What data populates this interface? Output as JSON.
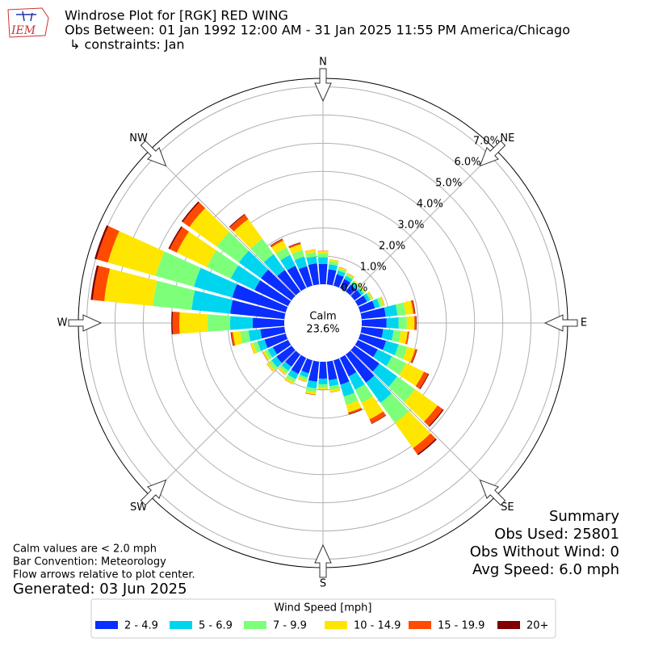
{
  "header": {
    "title": "Windrose Plot for [RGK] RED WING",
    "subtitle": "Obs Between: 01 Jan 1992 12:00 AM - 31 Jan 2025 11:55 PM America/Chicago",
    "constraints": "↳ constraints: Jan",
    "logo_text": "IEM"
  },
  "chart_data": {
    "type": "windrose",
    "x": [
      0,
      10,
      20,
      30,
      40,
      50,
      60,
      70,
      80,
      90,
      100,
      110,
      120,
      130,
      140,
      150,
      160,
      170,
      180,
      190,
      200,
      210,
      220,
      230,
      240,
      250,
      260,
      270,
      280,
      290,
      300,
      310,
      320,
      330,
      340,
      350
    ],
    "xticks": [
      {
        "value": 0,
        "label": "N"
      },
      {
        "value": 45,
        "label": "NE"
      },
      {
        "value": 90,
        "label": "E"
      },
      {
        "value": 135,
        "label": "SE"
      },
      {
        "value": 180,
        "label": "S"
      },
      {
        "value": 225,
        "label": "SW"
      },
      {
        "value": 270,
        "label": "W"
      },
      {
        "value": 315,
        "label": "NW"
      }
    ],
    "ylim": [
      0,
      7.3
    ],
    "yticks": [
      {
        "value": 0,
        "label": "0.0%"
      },
      {
        "value": 1,
        "label": "1.0%"
      },
      {
        "value": 2,
        "label": "2.0%"
      },
      {
        "value": 3,
        "label": "3.0%"
      },
      {
        "value": 4,
        "label": "4.0%"
      },
      {
        "value": 5,
        "label": "5.0%"
      },
      {
        "value": 6,
        "label": "6.0%"
      },
      {
        "value": 7,
        "label": "7.0%"
      }
    ],
    "grid": true,
    "calm_label": "Calm",
    "calm_text": "23.6%",
    "legend_title": "Wind Speed [mph]",
    "series": [
      {
        "name": "2 - 4.9",
        "color": "#0a2eff",
        "values": [
          0.72,
          0.54,
          0.42,
          0.36,
          0.3,
          0.3,
          0.36,
          0.54,
          0.86,
          0.88,
          0.77,
          0.95,
          0.78,
          1.09,
          1.23,
          0.73,
          0.9,
          0.66,
          0.6,
          0.72,
          0.48,
          0.63,
          0.54,
          0.66,
          0.6,
          0.78,
          0.86,
          1.12,
          1.93,
          1.97,
          1.32,
          1.34,
          0.95,
          0.88,
          0.72,
          0.75
        ]
      },
      {
        "name": "5 - 6.9",
        "color": "#00d5f0",
        "values": [
          0.24,
          0.18,
          0.14,
          0.12,
          0.1,
          0.1,
          0.12,
          0.18,
          0.42,
          0.43,
          0.37,
          0.46,
          0.56,
          0.78,
          0.88,
          0.52,
          0.44,
          0.22,
          0.2,
          0.24,
          0.16,
          0.21,
          0.18,
          0.22,
          0.2,
          0.26,
          0.42,
          0.8,
          1.38,
          1.41,
          0.94,
          0.96,
          0.68,
          0.43,
          0.35,
          0.25
        ]
      },
      {
        "name": "7 - 9.9",
        "color": "#7dff7a",
        "values": [
          0.14,
          0.11,
          0.08,
          0.07,
          0.06,
          0.06,
          0.07,
          0.11,
          0.29,
          0.29,
          0.26,
          0.32,
          0.56,
          0.78,
          0.88,
          0.52,
          0.3,
          0.13,
          0.12,
          0.14,
          0.1,
          0.13,
          0.11,
          0.13,
          0.12,
          0.16,
          0.29,
          0.8,
          1.38,
          1.41,
          0.94,
          0.96,
          0.68,
          0.29,
          0.24,
          0.15
        ]
      },
      {
        "name": "10 - 14.9",
        "color": "#ffe600",
        "values": [
          0.08,
          0.06,
          0.05,
          0.04,
          0.04,
          0.04,
          0.04,
          0.06,
          0.27,
          0.27,
          0.24,
          0.29,
          0.7,
          0.98,
          1.1,
          0.65,
          0.28,
          0.08,
          0.07,
          0.08,
          0.05,
          0.07,
          0.06,
          0.08,
          0.07,
          0.09,
          0.27,
          1.0,
          1.73,
          1.76,
          1.18,
          1.2,
          0.85,
          0.27,
          0.22,
          0.09
        ]
      },
      {
        "name": "15 - 19.9",
        "color": "#ff4a00",
        "values": [
          0.01,
          0.01,
          0.01,
          0.01,
          0,
          0,
          0.01,
          0.01,
          0.06,
          0.06,
          0.05,
          0.06,
          0.17,
          0.23,
          0.26,
          0.16,
          0.06,
          0.01,
          0.01,
          0.02,
          0.01,
          0.01,
          0.01,
          0.01,
          0.01,
          0.01,
          0.06,
          0.24,
          0.41,
          0.42,
          0.28,
          0.29,
          0.2,
          0.06,
          0.05,
          0.01
        ]
      },
      {
        "name": "20+",
        "color": "#800000",
        "values": [
          0,
          0,
          0,
          0,
          0,
          0,
          0,
          0,
          0.02,
          0.02,
          0.01,
          0.02,
          0.03,
          0.04,
          0.05,
          0.02,
          0.02,
          0,
          0,
          0,
          0,
          0,
          0,
          0,
          0,
          0,
          0.02,
          0.04,
          0.07,
          0.07,
          0.05,
          0.05,
          0.03,
          0.02,
          0.02,
          0
        ]
      }
    ]
  },
  "notes": {
    "calm": "Calm values are < 2.0 mph",
    "convention": "Bar Convention: Meteorology",
    "flow": "Flow arrows relative to plot center.",
    "generated": "Generated: 03 Jun 2025"
  },
  "summary": {
    "title": "Summary",
    "obs_used": "Obs Used: 25801",
    "obs_without_wind": "Obs Without Wind: 0",
    "avg_speed": "Avg Speed: 6.0 mph"
  }
}
